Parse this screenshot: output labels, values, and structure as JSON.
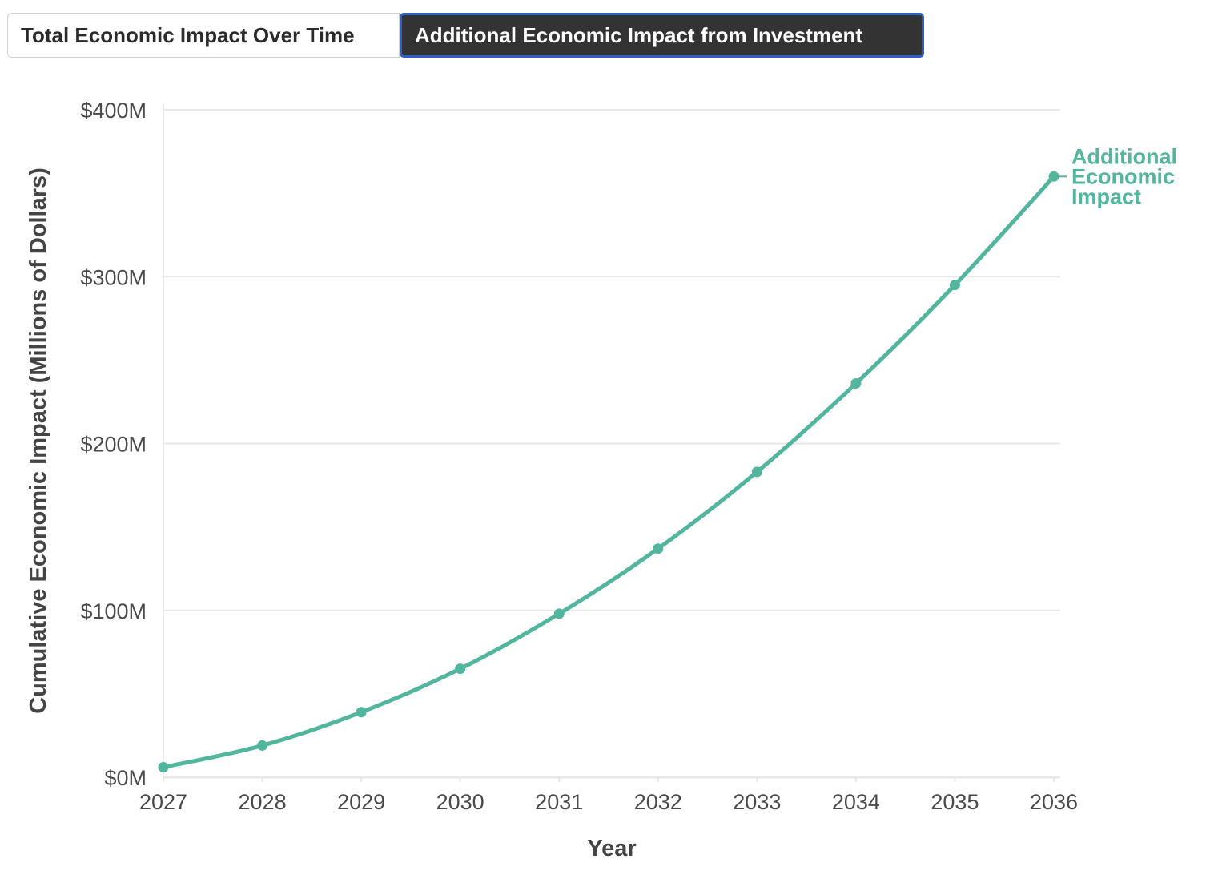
{
  "tabs": [
    {
      "label": "Total Economic Impact Over Time",
      "active": false
    },
    {
      "label": "Additional Economic Impact from Investment",
      "active": true
    }
  ],
  "colors": {
    "series": "#52b59d",
    "grid": "#e8e8e8",
    "tab_active_bg": "#333333",
    "tab_active_border": "#2e5fc9"
  },
  "chart_data": {
    "type": "line",
    "xlabel": "Year",
    "ylabel": "Cumulative Economic Impact (Millions of Dollars)",
    "x": [
      2027,
      2028,
      2029,
      2030,
      2031,
      2032,
      2033,
      2034,
      2035,
      2036
    ],
    "series": [
      {
        "name": "Additional Economic Impact",
        "name_lines": [
          "Additional",
          "Economic",
          "Impact"
        ],
        "values": [
          6,
          19,
          39,
          65,
          98,
          137,
          183,
          236,
          295,
          360
        ]
      }
    ],
    "ylim": [
      0,
      400
    ],
    "y_ticks": [
      0,
      100,
      200,
      300,
      400
    ],
    "y_tick_labels": [
      "$0M",
      "$100M",
      "$200M",
      "$300M",
      "$400M"
    ],
    "x_tick_labels": [
      "2027",
      "2028",
      "2029",
      "2030",
      "2031",
      "2032",
      "2033",
      "2034",
      "2035",
      "2036"
    ],
    "grid": true,
    "legend": "direct label at end of line"
  }
}
